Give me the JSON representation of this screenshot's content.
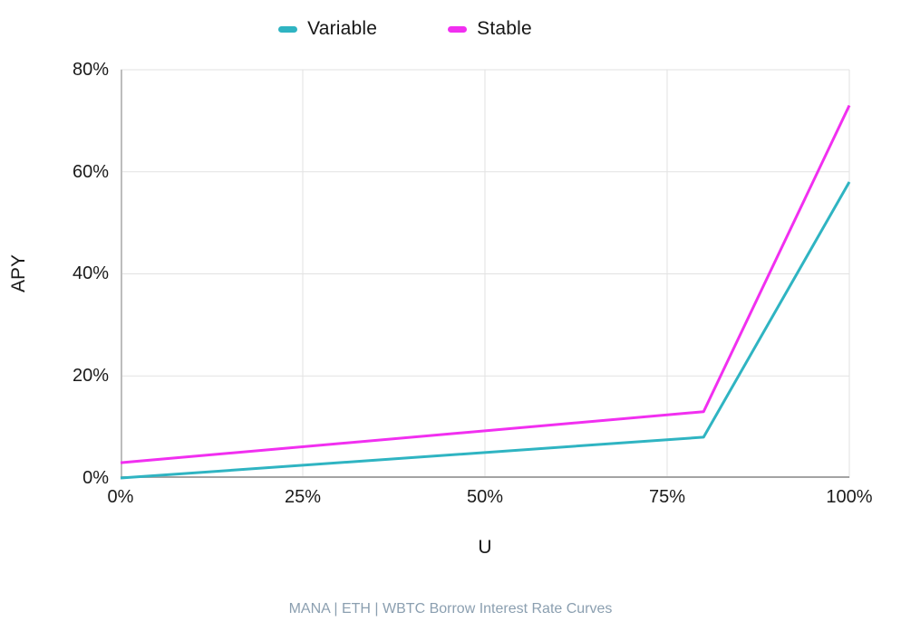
{
  "page": {
    "caption": "MANA | ETH | WBTC Borrow Interest Rate Curves"
  },
  "colors": {
    "variable_line": "#2fb4c2",
    "stable_line": "#f12ff0",
    "gridline": "#e2e2e2",
    "caption_text": "#8b9fb0"
  },
  "chart_data": {
    "type": "line",
    "title": "MANA | ETH | WBTC Borrow Interest Rate Curves",
    "xlabel": "U",
    "ylabel": "APY",
    "xlim": [
      0,
      100
    ],
    "ylim": [
      0,
      80
    ],
    "x_ticks": [
      0,
      25,
      50,
      75,
      100
    ],
    "x_tick_labels": [
      "0%",
      "25%",
      "50%",
      "75%",
      "100%"
    ],
    "y_ticks": [
      0,
      20,
      40,
      60,
      80
    ],
    "y_tick_labels": [
      "0%",
      "20%",
      "40%",
      "60%",
      "80%"
    ],
    "grid": true,
    "legend_position": "top",
    "series": [
      {
        "name": "Variable",
        "color": "#2fb4c2",
        "points": [
          {
            "x": 0,
            "y": 0
          },
          {
            "x": 80,
            "y": 8
          },
          {
            "x": 100,
            "y": 58
          }
        ]
      },
      {
        "name": "Stable",
        "color": "#f12ff0",
        "points": [
          {
            "x": 0,
            "y": 3
          },
          {
            "x": 80,
            "y": 13
          },
          {
            "x": 100,
            "y": 73
          }
        ]
      }
    ]
  }
}
